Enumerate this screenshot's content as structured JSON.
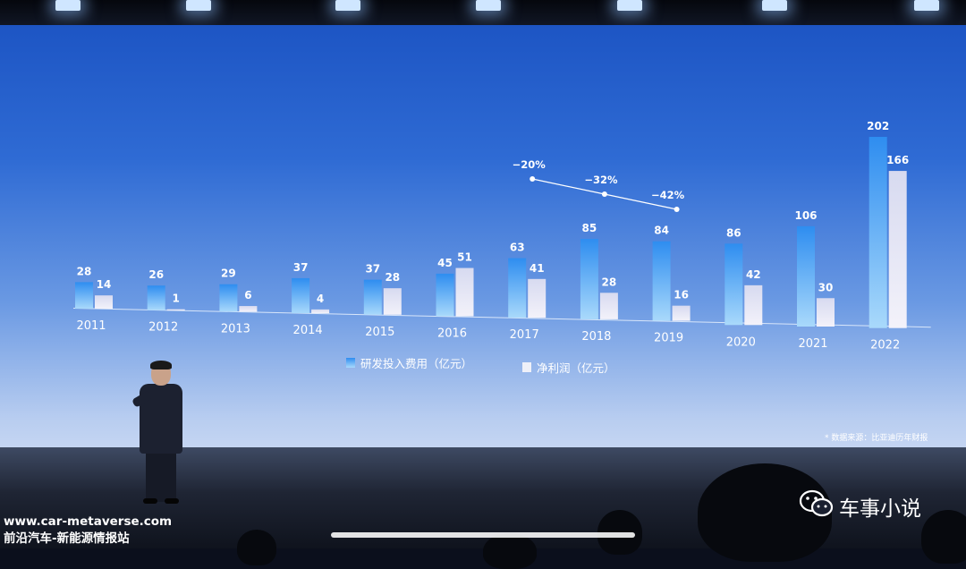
{
  "chart_data": {
    "type": "bar",
    "categories": [
      "2011",
      "2012",
      "2013",
      "2014",
      "2015",
      "2016",
      "2017",
      "2018",
      "2019",
      "2020",
      "2021",
      "2022"
    ],
    "series": [
      {
        "name": "研发投入费用（亿元）",
        "values": [
          28,
          26,
          29,
          37,
          37,
          45,
          63,
          85,
          84,
          86,
          106,
          202
        ],
        "color": "#4aa7f0"
      },
      {
        "name": "净利润（亿元）",
        "values": [
          14,
          1,
          6,
          4,
          28,
          51,
          41,
          28,
          16,
          42,
          30,
          166
        ],
        "color": "#e4e6f3"
      }
    ],
    "trend": {
      "categories": [
        "2017",
        "2018",
        "2019"
      ],
      "labels": [
        "−20%",
        "−32%",
        "−42%"
      ]
    },
    "ylim": [
      0,
      210
    ],
    "grid": false,
    "legend_position": "bottom"
  },
  "footnote": "* 数据来源：比亚迪历年财报",
  "watermark": {
    "line1": "www.car-metaverse.com",
    "line2": "前沿汽车-新能源情报站"
  },
  "channel_name": "车事小说",
  "icons": [
    "wechat-icon"
  ],
  "video_progress": 1.0
}
